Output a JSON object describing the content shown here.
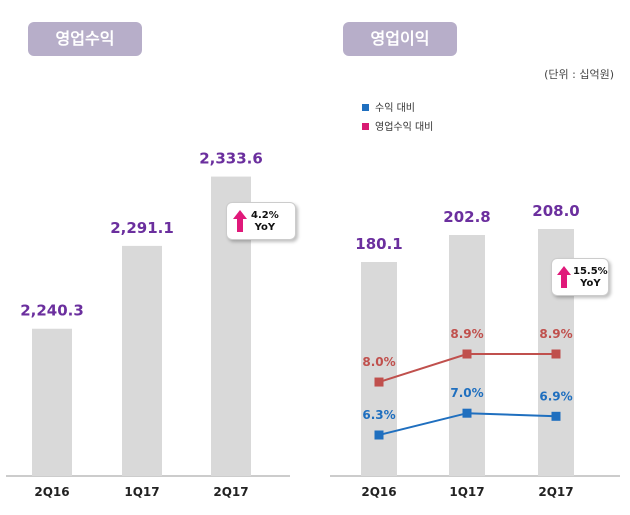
{
  "titles": {
    "left": "영업수익",
    "right": "영업이익"
  },
  "unit": "(단위 : 십억원)",
  "legend": [
    {
      "label": "수익 대비",
      "color": "#1f6fbf"
    },
    {
      "label": "영업수익 대비",
      "color": "#d81b72"
    }
  ],
  "yoy_left": {
    "value": "4.2%",
    "label": "YoY"
  },
  "yoy_right": {
    "value": "15.5%",
    "label": "YoY"
  },
  "chart_data": [
    {
      "type": "bar",
      "title": "영업수익",
      "categories": [
        "2Q16",
        "1Q17",
        "2Q17"
      ],
      "values": [
        2240.3,
        2291.1,
        2333.6
      ],
      "value_labels": [
        "2,240.3",
        "2,291.1",
        "2,333.6"
      ],
      "bar_color": "#d9d9d9",
      "label_color": "#6b2f9e"
    },
    {
      "type": "bar",
      "title": "영업이익",
      "categories": [
        "2Q16",
        "1Q17",
        "2Q17"
      ],
      "values": [
        180.1,
        202.8,
        208.0
      ],
      "value_labels": [
        "180.1",
        "202.8",
        "208.0"
      ],
      "series": [
        {
          "name": "영업수익 대비",
          "type": "line",
          "values": [
            8.0,
            8.9,
            8.9
          ],
          "labels": [
            "8.0%",
            "8.9%",
            "8.9%"
          ],
          "color": "#c0504d"
        },
        {
          "name": "수익 대비",
          "type": "line",
          "values": [
            6.3,
            7.0,
            6.9
          ],
          "labels": [
            "6.3%",
            "7.0%",
            "6.9%"
          ],
          "color": "#1f6fbf"
        }
      ]
    }
  ]
}
